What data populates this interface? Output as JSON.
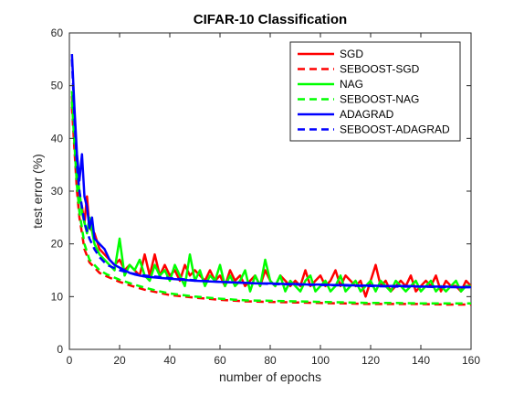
{
  "chart_data": {
    "type": "line",
    "title": "CIFAR-10 Classification",
    "xlabel": "number of epochs",
    "ylabel": "test error (%)",
    "xlim": [
      0,
      160
    ],
    "ylim": [
      0,
      60
    ],
    "xticks": [
      0,
      20,
      40,
      60,
      80,
      100,
      120,
      140,
      160
    ],
    "yticks": [
      0,
      10,
      20,
      30,
      40,
      50,
      60
    ],
    "grid": false,
    "legend_position": "top-right",
    "series": [
      {
        "name": "SGD",
        "color": "#ff0000",
        "dash": "solid",
        "x": [
          1,
          2,
          3,
          4,
          5,
          6,
          7,
          8,
          10,
          12,
          14,
          16,
          18,
          20,
          22,
          24,
          26,
          28,
          30,
          32,
          34,
          36,
          38,
          40,
          42,
          44,
          46,
          48,
          50,
          52,
          54,
          56,
          58,
          60,
          62,
          64,
          66,
          68,
          70,
          72,
          74,
          76,
          78,
          80,
          82,
          84,
          86,
          88,
          90,
          92,
          94,
          96,
          98,
          100,
          102,
          104,
          106,
          108,
          110,
          112,
          114,
          116,
          118,
          120,
          122,
          124,
          126,
          128,
          130,
          132,
          134,
          136,
          138,
          140,
          142,
          144,
          146,
          148,
          150,
          152,
          154,
          156,
          158,
          160
        ],
        "values": [
          48,
          41,
          33,
          29,
          27,
          24,
          29,
          23,
          22,
          19,
          18,
          17,
          16,
          17,
          15,
          16,
          15,
          14,
          18,
          14,
          18,
          14,
          16,
          14,
          15,
          13,
          16,
          14,
          15,
          14,
          13,
          15,
          13,
          14,
          12,
          15,
          13,
          14,
          12,
          13,
          14,
          12,
          15,
          13,
          12,
          14,
          13,
          12,
          13,
          12,
          15,
          12,
          13,
          14,
          12,
          13,
          15,
          12,
          14,
          13,
          12,
          13,
          10,
          13,
          16,
          12,
          13,
          11,
          12,
          13,
          12,
          14,
          11,
          12,
          13,
          12,
          14,
          11,
          13,
          12,
          12,
          11,
          13,
          12
        ]
      },
      {
        "name": "SEBOOST-SGD",
        "color": "#ff0000",
        "dash": "dashed",
        "x": [
          1,
          2,
          3,
          4,
          5,
          6,
          8,
          10,
          12,
          15,
          20,
          25,
          30,
          35,
          40,
          50,
          60,
          70,
          80,
          90,
          100,
          110,
          120,
          130,
          140,
          150,
          160
        ],
        "values": [
          46,
          38,
          30,
          25,
          22,
          19,
          16.5,
          15.5,
          14.5,
          13.8,
          12.8,
          12,
          11.3,
          10.8,
          10.3,
          9.8,
          9.4,
          9.1,
          9,
          8.9,
          8.8,
          8.7,
          8.6,
          8.6,
          8.6,
          8.5,
          8.5
        ]
      },
      {
        "name": "NAG",
        "color": "#00ff00",
        "dash": "solid",
        "x": [
          1,
          2,
          3,
          4,
          5,
          6,
          7,
          8,
          10,
          12,
          14,
          16,
          18,
          20,
          22,
          24,
          26,
          28,
          30,
          32,
          34,
          36,
          38,
          40,
          42,
          44,
          46,
          48,
          50,
          52,
          54,
          56,
          58,
          60,
          62,
          64,
          66,
          68,
          70,
          72,
          74,
          76,
          78,
          80,
          82,
          84,
          86,
          88,
          90,
          92,
          94,
          96,
          98,
          100,
          102,
          104,
          106,
          108,
          110,
          112,
          114,
          116,
          118,
          120,
          122,
          124,
          126,
          128,
          130,
          132,
          134,
          136,
          138,
          140,
          142,
          144,
          146,
          148,
          150,
          152,
          154,
          156,
          158,
          160
        ],
        "values": [
          49,
          42,
          34,
          30,
          26,
          24,
          22,
          25,
          20,
          18,
          17,
          16,
          15,
          21,
          14,
          16,
          15,
          17,
          14,
          13,
          16,
          14,
          15,
          13,
          16,
          14,
          12,
          18,
          13,
          15,
          12,
          14,
          13,
          16,
          12,
          14,
          12,
          13,
          15,
          11,
          14,
          12,
          17,
          13,
          12,
          14,
          11,
          13,
          12,
          11,
          13,
          14,
          11,
          12,
          13,
          11,
          12,
          14,
          11,
          12,
          13,
          11,
          12,
          13,
          11,
          13,
          12,
          11,
          13,
          12,
          11,
          12,
          13,
          11,
          12,
          13,
          11,
          12,
          11,
          12,
          13,
          11,
          12,
          12
        ]
      },
      {
        "name": "SEBOOST-NAG",
        "color": "#00ff00",
        "dash": "dashed",
        "x": [
          1,
          2,
          3,
          4,
          5,
          6,
          8,
          10,
          12,
          15,
          20,
          25,
          30,
          35,
          40,
          50,
          60,
          70,
          80,
          90,
          100,
          110,
          120,
          130,
          140,
          150,
          160
        ],
        "values": [
          47,
          39,
          31,
          26,
          23,
          20,
          17,
          16,
          15,
          14.2,
          13.2,
          12.4,
          11.7,
          11.1,
          10.6,
          10,
          9.6,
          9.3,
          9.2,
          9.1,
          9,
          8.9,
          8.8,
          8.8,
          8.7,
          8.7,
          8.7
        ]
      },
      {
        "name": "ADAGRAD",
        "color": "#0000ff",
        "dash": "solid",
        "x": [
          1,
          2,
          3,
          4,
          5,
          6,
          7,
          8,
          9,
          10,
          12,
          14,
          16,
          18,
          20,
          22,
          24,
          26,
          28,
          30,
          35,
          40,
          45,
          50,
          55,
          60,
          65,
          70,
          75,
          80,
          85,
          90,
          95,
          100,
          105,
          110,
          115,
          120,
          125,
          130,
          135,
          140,
          145,
          150,
          155,
          160
        ],
        "values": [
          56,
          46,
          37,
          32,
          37,
          29,
          27,
          23,
          25,
          21,
          20,
          19,
          17,
          16,
          15.5,
          15,
          14.5,
          14.2,
          14,
          13.8,
          13.6,
          13.4,
          13.2,
          13,
          12.9,
          12.8,
          12.7,
          12.6,
          12.5,
          12.5,
          12.4,
          12.4,
          12.3,
          12.3,
          12.2,
          12.2,
          12.1,
          12.1,
          12,
          12,
          12,
          11.9,
          11.9,
          11.9,
          11.8,
          11.8
        ]
      },
      {
        "name": "SEBOOST-ADAGRAD",
        "color": "#0000ff",
        "dash": "dashed",
        "x": [
          1,
          2,
          3,
          4,
          5,
          6,
          8,
          10,
          12,
          15,
          20,
          25,
          30,
          40,
          50,
          60,
          70,
          80,
          90,
          100,
          110,
          120,
          130,
          140,
          150,
          160
        ],
        "values": [
          55,
          44,
          35,
          30,
          27,
          24,
          21,
          19,
          17.5,
          16,
          15,
          14.4,
          14,
          13.5,
          13.1,
          12.8,
          12.6,
          12.4,
          12.3,
          12.2,
          12.1,
          12,
          11.9,
          11.9,
          11.8,
          11.8
        ]
      }
    ]
  }
}
